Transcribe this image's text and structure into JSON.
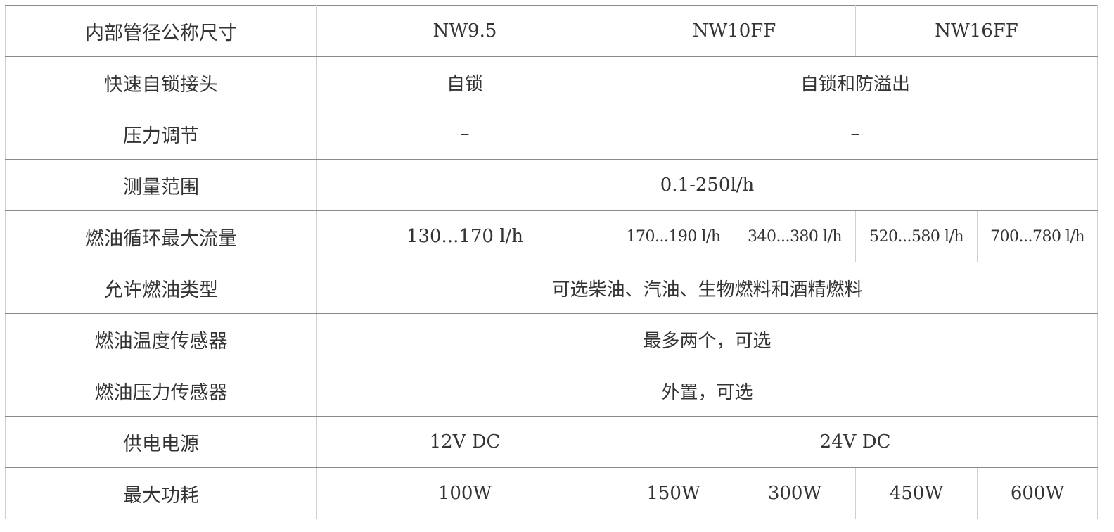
{
  "table": {
    "rows": [
      {
        "label": "内部管径公称尺寸",
        "cells": [
          "NW9.5",
          "NW10FF",
          "NW16FF"
        ]
      },
      {
        "label": "快速自锁接头",
        "cells": [
          "自锁",
          "自锁和防溢出"
        ]
      },
      {
        "label": "压力调节",
        "cells": [
          "–",
          "–"
        ]
      },
      {
        "label": "测量范围",
        "cells": [
          "0.1-250l/h"
        ]
      },
      {
        "label": "燃油循环最大流量",
        "cells": [
          "130...170 l/h",
          "170...190 l/h",
          "340...380 l/h",
          "520...580 l/h",
          "700...780 l/h"
        ]
      },
      {
        "label": "允许燃油类型",
        "cells": [
          "可选柴油、汽油、生物燃料和酒精燃料"
        ]
      },
      {
        "label": "燃油温度传感器",
        "cells": [
          "最多两个，可选"
        ]
      },
      {
        "label": "燃油压力传感器",
        "cells": [
          "外置，可选"
        ]
      },
      {
        "label": "供电电源",
        "cells": [
          "12V DC",
          "24V DC"
        ]
      },
      {
        "label": "最大功耗",
        "cells": [
          "100W",
          "150W",
          "300W",
          "450W",
          "600W"
        ]
      }
    ]
  }
}
